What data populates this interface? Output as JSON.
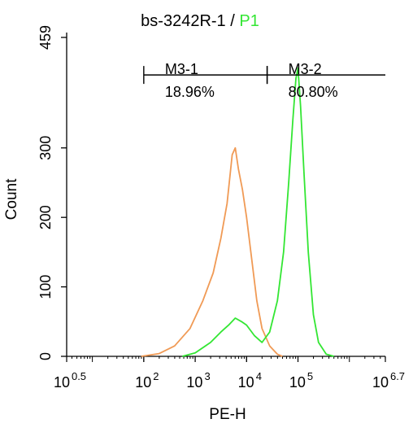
{
  "chart_data": {
    "type": "line",
    "title": "bs-3242R-1",
    "title_separator": " / ",
    "title_gate": "P1",
    "xlabel": "PE-H",
    "ylabel": "Count",
    "x_scale": "log",
    "xlim_log10": [
      0.5,
      6.7
    ],
    "ylim": [
      0,
      459
    ],
    "y_ticks": [
      {
        "value": 0,
        "label": "0"
      },
      {
        "value": 100,
        "label": "100"
      },
      {
        "value": 200,
        "label": "200"
      },
      {
        "value": 300,
        "label": "300"
      },
      {
        "value": 459,
        "label": "459"
      }
    ],
    "x_ticks": [
      {
        "exp": 0.5,
        "base": "10",
        "sup": "0.5"
      },
      {
        "exp": 2,
        "base": "10",
        "sup": "2"
      },
      {
        "exp": 3,
        "base": "10",
        "sup": "3"
      },
      {
        "exp": 4,
        "base": "10",
        "sup": "4"
      },
      {
        "exp": 5,
        "base": "10",
        "sup": "5"
      },
      {
        "exp": 6.7,
        "base": "10",
        "sup": "6.7"
      }
    ],
    "series": [
      {
        "color": "#f09a55",
        "points": [
          [
            1.95,
            0
          ],
          [
            2.3,
            4
          ],
          [
            2.6,
            15
          ],
          [
            2.9,
            40
          ],
          [
            3.15,
            80
          ],
          [
            3.35,
            120
          ],
          [
            3.5,
            170
          ],
          [
            3.62,
            220
          ],
          [
            3.72,
            290
          ],
          [
            3.78,
            300
          ],
          [
            3.84,
            270
          ],
          [
            3.92,
            240
          ],
          [
            4.0,
            200
          ],
          [
            4.1,
            140
          ],
          [
            4.2,
            80
          ],
          [
            4.3,
            40
          ],
          [
            4.45,
            15
          ],
          [
            4.6,
            3
          ],
          [
            4.7,
            0
          ]
        ]
      },
      {
        "color": "#33e633",
        "points": [
          [
            2.75,
            0
          ],
          [
            3.0,
            5
          ],
          [
            3.3,
            20
          ],
          [
            3.5,
            35
          ],
          [
            3.65,
            45
          ],
          [
            3.78,
            55
          ],
          [
            3.9,
            50
          ],
          [
            4.0,
            45
          ],
          [
            4.15,
            30
          ],
          [
            4.3,
            20
          ],
          [
            4.45,
            35
          ],
          [
            4.6,
            80
          ],
          [
            4.72,
            150
          ],
          [
            4.82,
            250
          ],
          [
            4.9,
            340
          ],
          [
            4.96,
            400
          ],
          [
            5.0,
            415
          ],
          [
            5.05,
            360
          ],
          [
            5.12,
            260
          ],
          [
            5.2,
            150
          ],
          [
            5.3,
            60
          ],
          [
            5.4,
            20
          ],
          [
            5.55,
            3
          ],
          [
            5.7,
            0
          ]
        ]
      }
    ],
    "markers": [
      {
        "name": "M3-1",
        "percent": "18.96%",
        "start_log": 2.0,
        "end_log": 4.4
      },
      {
        "name": "M3-2",
        "percent": "80.80%",
        "start_log": 4.4,
        "end_log": 6.7
      }
    ],
    "marker_y": 405
  },
  "colors": {
    "gate": "#33e633",
    "axis": "#000000"
  }
}
